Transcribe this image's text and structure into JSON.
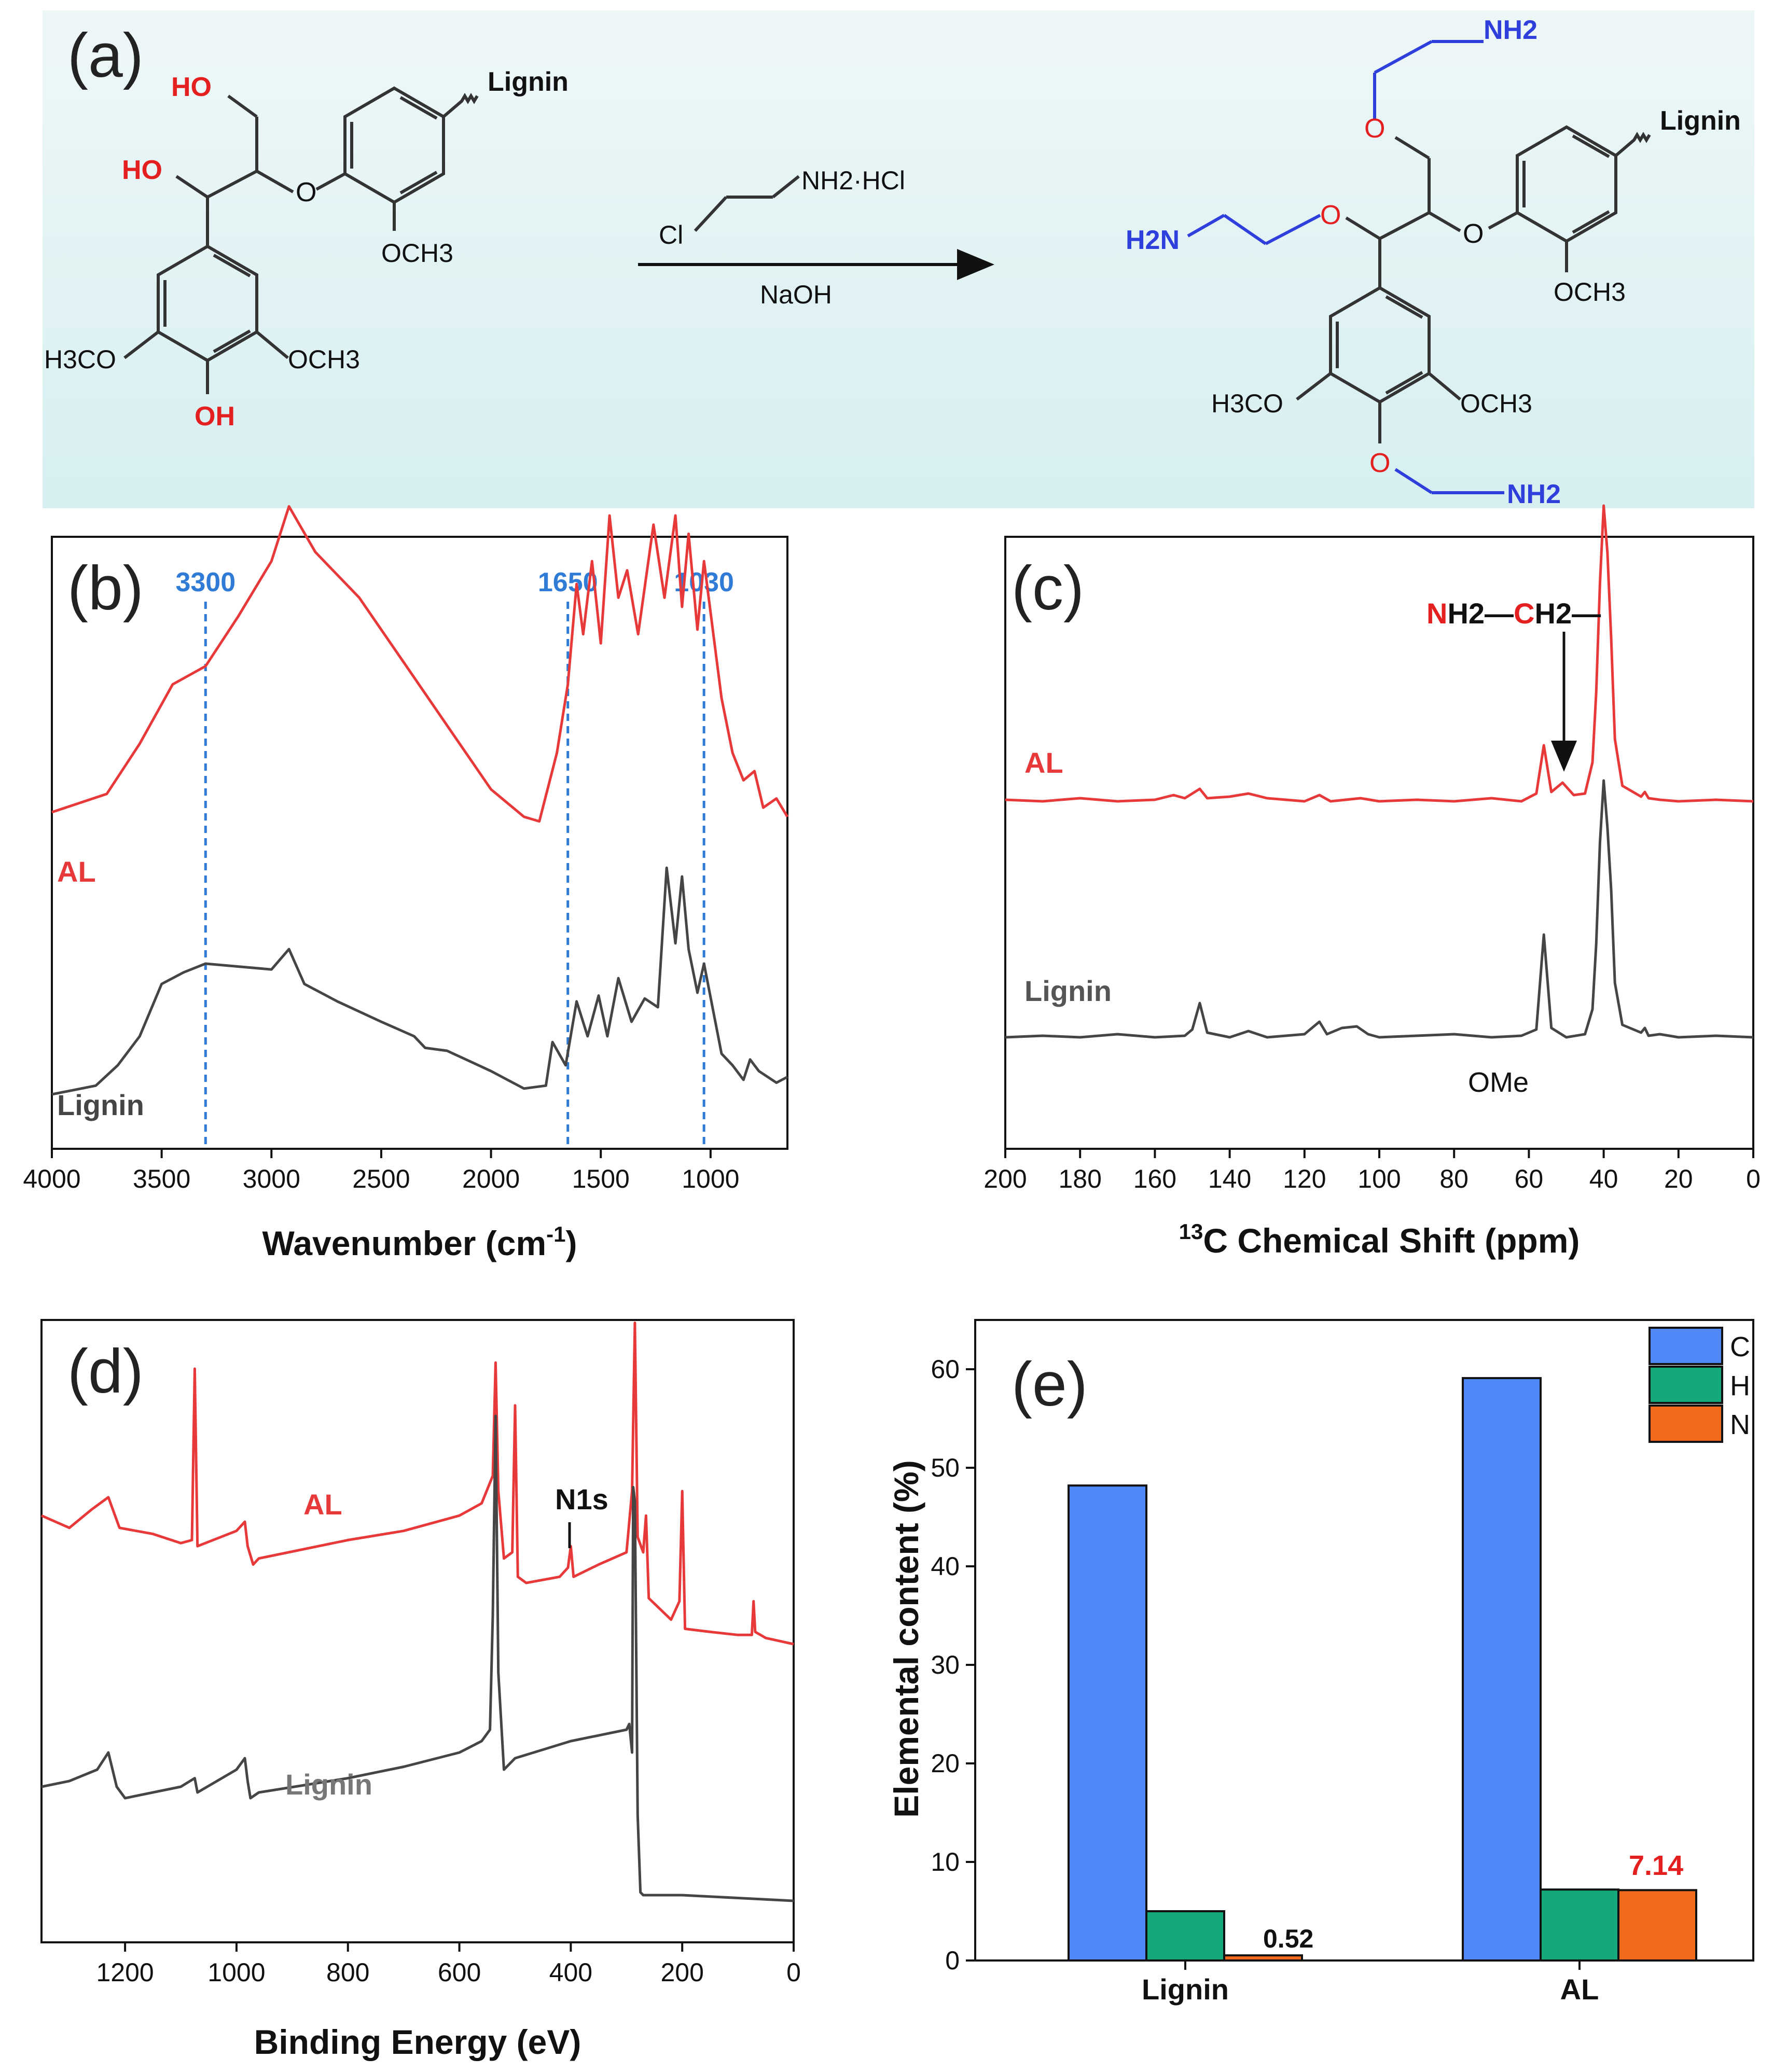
{
  "panels": {
    "a": {
      "label": "(a)",
      "reagent": "NH2·HCl",
      "reagent_cl": "Cl",
      "base": "NaOH",
      "lignin": "Lignin",
      "ho1": "HO",
      "ho2": "HO",
      "oh": "OH",
      "och3": "OCH3",
      "h3co": "H3CO",
      "nh2": "NH2",
      "h2n": "H2N",
      "o": "O"
    },
    "b": {
      "label": "(b)",
      "xlabel": "Wavenumber (cm-1)",
      "series": [
        "AL",
        "Lignin"
      ],
      "markers": [
        "3300",
        "1650",
        "1030"
      ],
      "xticks": [
        "4000",
        "3500",
        "3000",
        "2500",
        "2000",
        "1500",
        "1000"
      ]
    },
    "c": {
      "label": "(c)",
      "xlabel": "13C Chemical Shift (ppm)",
      "series": [
        "AL",
        "Lignin"
      ],
      "annotation_n": "N",
      "annotation_h2": "H2—",
      "annotation_c": "C",
      "annotation_rest": "H2—",
      "ome": "OMe",
      "xticks": [
        "200",
        "180",
        "160",
        "140",
        "120",
        "100",
        "80",
        "60",
        "40",
        "20",
        "0"
      ]
    },
    "d": {
      "label": "(d)",
      "xlabel": "Binding Energy (eV)",
      "series": [
        "AL",
        "Lignin"
      ],
      "n1s": "N1s",
      "xticks": [
        "1200",
        "1000",
        "800",
        "600",
        "400",
        "200",
        "0"
      ]
    },
    "e": {
      "label": "(e)",
      "ylabel": "Elemental content (%)",
      "n_lignin_label": "0.52",
      "n_al_label": "7.14"
    }
  },
  "colors": {
    "al": "#e8393a",
    "lignin": "#454545",
    "marker": "#2f7bd6",
    "C": "#4f88f7",
    "H": "#13a97a",
    "N": "#f26a1b"
  },
  "chart_data": [
    {
      "panel": "b",
      "type": "line",
      "title": "",
      "xlabel": "Wavenumber (cm-1)",
      "ylabel": "",
      "xlim": [
        4000,
        650
      ],
      "reversed_x": true,
      "vertical_markers": [
        3300,
        1650,
        1030
      ],
      "series": [
        {
          "name": "AL",
          "x": [
            4000,
            3750,
            3600,
            3450,
            3300,
            3150,
            3000,
            2920,
            2800,
            2600,
            2400,
            2200,
            2000,
            1850,
            1780,
            1700,
            1650,
            1610,
            1580,
            1540,
            1500,
            1460,
            1420,
            1380,
            1330,
            1260,
            1210,
            1160,
            1130,
            1100,
            1060,
            1030,
            950,
            900,
            850,
            800,
            760,
            700,
            650
          ],
          "y": [
            0.05,
            0.09,
            0.2,
            0.33,
            0.37,
            0.48,
            0.6,
            0.72,
            0.62,
            0.52,
            0.38,
            0.24,
            0.1,
            0.04,
            0.03,
            0.18,
            0.33,
            0.55,
            0.44,
            0.6,
            0.42,
            0.7,
            0.52,
            0.58,
            0.44,
            0.68,
            0.52,
            0.7,
            0.5,
            0.66,
            0.45,
            0.6,
            0.3,
            0.18,
            0.12,
            0.14,
            0.06,
            0.08,
            0.04
          ]
        },
        {
          "name": "Lignin",
          "x": [
            4000,
            3800,
            3700,
            3600,
            3500,
            3400,
            3300,
            3150,
            3000,
            2920,
            2850,
            2700,
            2500,
            2350,
            2300,
            2200,
            2000,
            1850,
            1750,
            1720,
            1660,
            1610,
            1560,
            1510,
            1470,
            1420,
            1360,
            1300,
            1240,
            1200,
            1160,
            1130,
            1100,
            1060,
            1030,
            950,
            900,
            850,
            820,
            780,
            700,
            650
          ],
          "y": [
            0.0,
            0.03,
            0.1,
            0.2,
            0.38,
            0.42,
            0.45,
            0.44,
            0.43,
            0.5,
            0.38,
            0.32,
            0.25,
            0.2,
            0.16,
            0.15,
            0.08,
            0.02,
            0.03,
            0.18,
            0.1,
            0.32,
            0.2,
            0.34,
            0.2,
            0.4,
            0.25,
            0.33,
            0.3,
            0.78,
            0.52,
            0.75,
            0.5,
            0.35,
            0.45,
            0.14,
            0.1,
            0.05,
            0.12,
            0.08,
            0.04,
            0.06
          ]
        }
      ]
    },
    {
      "panel": "c",
      "type": "line",
      "title": "",
      "xlabel": "13C Chemical Shift (ppm)",
      "ylabel": "",
      "xlim": [
        200,
        0
      ],
      "reversed_x": true,
      "annotations": [
        {
          "text": "NH2—CH2—",
          "x": 51
        },
        {
          "text": "OMe",
          "x": 56
        }
      ],
      "series": [
        {
          "name": "AL",
          "x": [
            200,
            190,
            180,
            170,
            160,
            155,
            152,
            148,
            146,
            140,
            135,
            130,
            120,
            116,
            113,
            105,
            100,
            90,
            80,
            70,
            62,
            58,
            56,
            54,
            51,
            48,
            45,
            43,
            42,
            41,
            40,
            39,
            38,
            37,
            35,
            30,
            29,
            28,
            25,
            20,
            10,
            0
          ],
          "y": [
            0.01,
            0.0,
            0.02,
            0.0,
            0.01,
            0.04,
            0.02,
            0.08,
            0.02,
            0.03,
            0.05,
            0.02,
            0.0,
            0.04,
            0.0,
            0.02,
            0.0,
            0.01,
            0.0,
            0.02,
            0.0,
            0.05,
            0.36,
            0.06,
            0.12,
            0.04,
            0.05,
            0.25,
            0.7,
            1.4,
            1.9,
            1.6,
            1.05,
            0.4,
            0.1,
            0.03,
            0.06,
            0.02,
            0.01,
            0.0,
            0.01,
            0.0
          ]
        },
        {
          "name": "Lignin",
          "x": [
            200,
            190,
            180,
            170,
            160,
            152,
            150,
            148,
            146,
            140,
            135,
            130,
            120,
            116,
            114,
            110,
            106,
            103,
            100,
            90,
            80,
            70,
            62,
            58,
            56,
            54,
            50,
            45,
            43,
            42,
            41,
            40,
            39,
            38,
            37,
            35,
            30,
            29,
            28,
            25,
            20,
            10,
            0
          ],
          "y": [
            0.0,
            0.01,
            0.0,
            0.02,
            0.0,
            0.01,
            0.05,
            0.22,
            0.03,
            0.0,
            0.04,
            0.0,
            0.02,
            0.1,
            0.02,
            0.06,
            0.07,
            0.02,
            0.0,
            0.01,
            0.02,
            0.0,
            0.01,
            0.05,
            0.66,
            0.06,
            0.0,
            0.02,
            0.18,
            0.6,
            1.25,
            1.65,
            1.35,
            0.95,
            0.35,
            0.08,
            0.03,
            0.06,
            0.01,
            0.02,
            0.0,
            0.01,
            0.0
          ]
        }
      ]
    },
    {
      "panel": "d",
      "type": "line",
      "title": "",
      "xlabel": "Binding Energy (eV)",
      "ylabel": "",
      "xlim": [
        1350,
        0
      ],
      "reversed_x": true,
      "annotations": [
        {
          "text": "N1s",
          "x": 400
        }
      ],
      "series": [
        {
          "name": "AL",
          "x": [
            1350,
            1300,
            1260,
            1230,
            1210,
            1150,
            1100,
            1080,
            1075,
            1070,
            1000,
            985,
            980,
            970,
            960,
            800,
            700,
            600,
            560,
            540,
            535,
            530,
            520,
            505,
            500,
            495,
            480,
            420,
            405,
            400,
            395,
            350,
            300,
            290,
            285,
            280,
            270,
            265,
            260,
            220,
            205,
            200,
            195,
            150,
            100,
            75,
            72,
            69,
            50,
            0
          ],
          "y": [
            0.42,
            0.38,
            0.44,
            0.48,
            0.38,
            0.36,
            0.33,
            0.34,
            0.9,
            0.32,
            0.37,
            0.4,
            0.32,
            0.26,
            0.28,
            0.34,
            0.37,
            0.42,
            0.46,
            0.55,
            0.92,
            0.5,
            0.28,
            0.3,
            0.78,
            0.22,
            0.2,
            0.22,
            0.25,
            0.32,
            0.22,
            0.26,
            0.3,
            0.5,
            1.05,
            0.35,
            0.3,
            0.42,
            0.15,
            0.08,
            0.14,
            0.5,
            0.05,
            0.04,
            0.03,
            0.03,
            0.14,
            0.04,
            0.02,
            0.0
          ]
        },
        {
          "name": "Lignin",
          "x": [
            1350,
            1300,
            1250,
            1230,
            1215,
            1200,
            1100,
            1075,
            1070,
            1000,
            985,
            980,
            975,
            960,
            800,
            700,
            600,
            560,
            545,
            540,
            535,
            530,
            520,
            500,
            400,
            300,
            295,
            290,
            288,
            285,
            280,
            275,
            270,
            200,
            100,
            0
          ],
          "y": [
            0.4,
            0.42,
            0.46,
            0.52,
            0.4,
            0.36,
            0.4,
            0.43,
            0.38,
            0.46,
            0.5,
            0.42,
            0.36,
            0.38,
            0.43,
            0.47,
            0.52,
            0.56,
            0.6,
            1.0,
            1.7,
            0.8,
            0.46,
            0.5,
            0.56,
            0.6,
            0.62,
            0.52,
            1.45,
            1.4,
            0.3,
            0.03,
            0.02,
            0.02,
            0.01,
            0.0
          ]
        }
      ]
    },
    {
      "panel": "e",
      "type": "bar",
      "title": "",
      "xlabel": "",
      "ylabel": "Elemental content (%)",
      "categories": [
        "Lignin",
        "AL"
      ],
      "ylim": [
        0,
        65
      ],
      "yticks": [
        0,
        10,
        20,
        30,
        40,
        50,
        60
      ],
      "series": [
        {
          "name": "C",
          "values": [
            48.2,
            59.1
          ]
        },
        {
          "name": "H",
          "values": [
            5.0,
            7.2
          ]
        },
        {
          "name": "N",
          "values": [
            0.52,
            7.14
          ]
        }
      ]
    }
  ]
}
